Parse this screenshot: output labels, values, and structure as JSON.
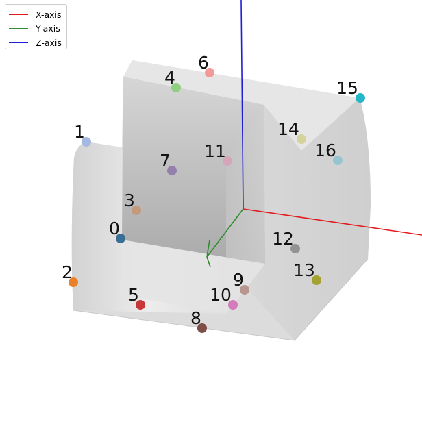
{
  "legend": {
    "items": [
      {
        "label": "X-axis",
        "color": "#e31a1c"
      },
      {
        "label": "Y-axis",
        "color": "#2e8b2e"
      },
      {
        "label": "Z-axis",
        "color": "#1f1fd6"
      }
    ]
  },
  "points": [
    {
      "id": "0",
      "color": "#3a6f95"
    },
    {
      "id": "1",
      "color": "#a5b8df"
    },
    {
      "id": "2",
      "color": "#e8812c"
    },
    {
      "id": "3",
      "color": "#c49a7c"
    },
    {
      "id": "4",
      "color": "#8fcf82"
    },
    {
      "id": "5",
      "color": "#c83638"
    },
    {
      "id": "6",
      "color": "#f39a98"
    },
    {
      "id": "7",
      "color": "#9580ad"
    },
    {
      "id": "8",
      "color": "#7d4f47"
    },
    {
      "id": "9",
      "color": "#b8958f"
    },
    {
      "id": "10",
      "color": "#d47bbb"
    },
    {
      "id": "11",
      "color": "#d7a5b9"
    },
    {
      "id": "12",
      "color": "#939393"
    },
    {
      "id": "13",
      "color": "#a3a232"
    },
    {
      "id": "14",
      "color": "#d4d39a"
    },
    {
      "id": "15",
      "color": "#25b6c8"
    },
    {
      "id": "16",
      "color": "#97c5cf"
    }
  ]
}
